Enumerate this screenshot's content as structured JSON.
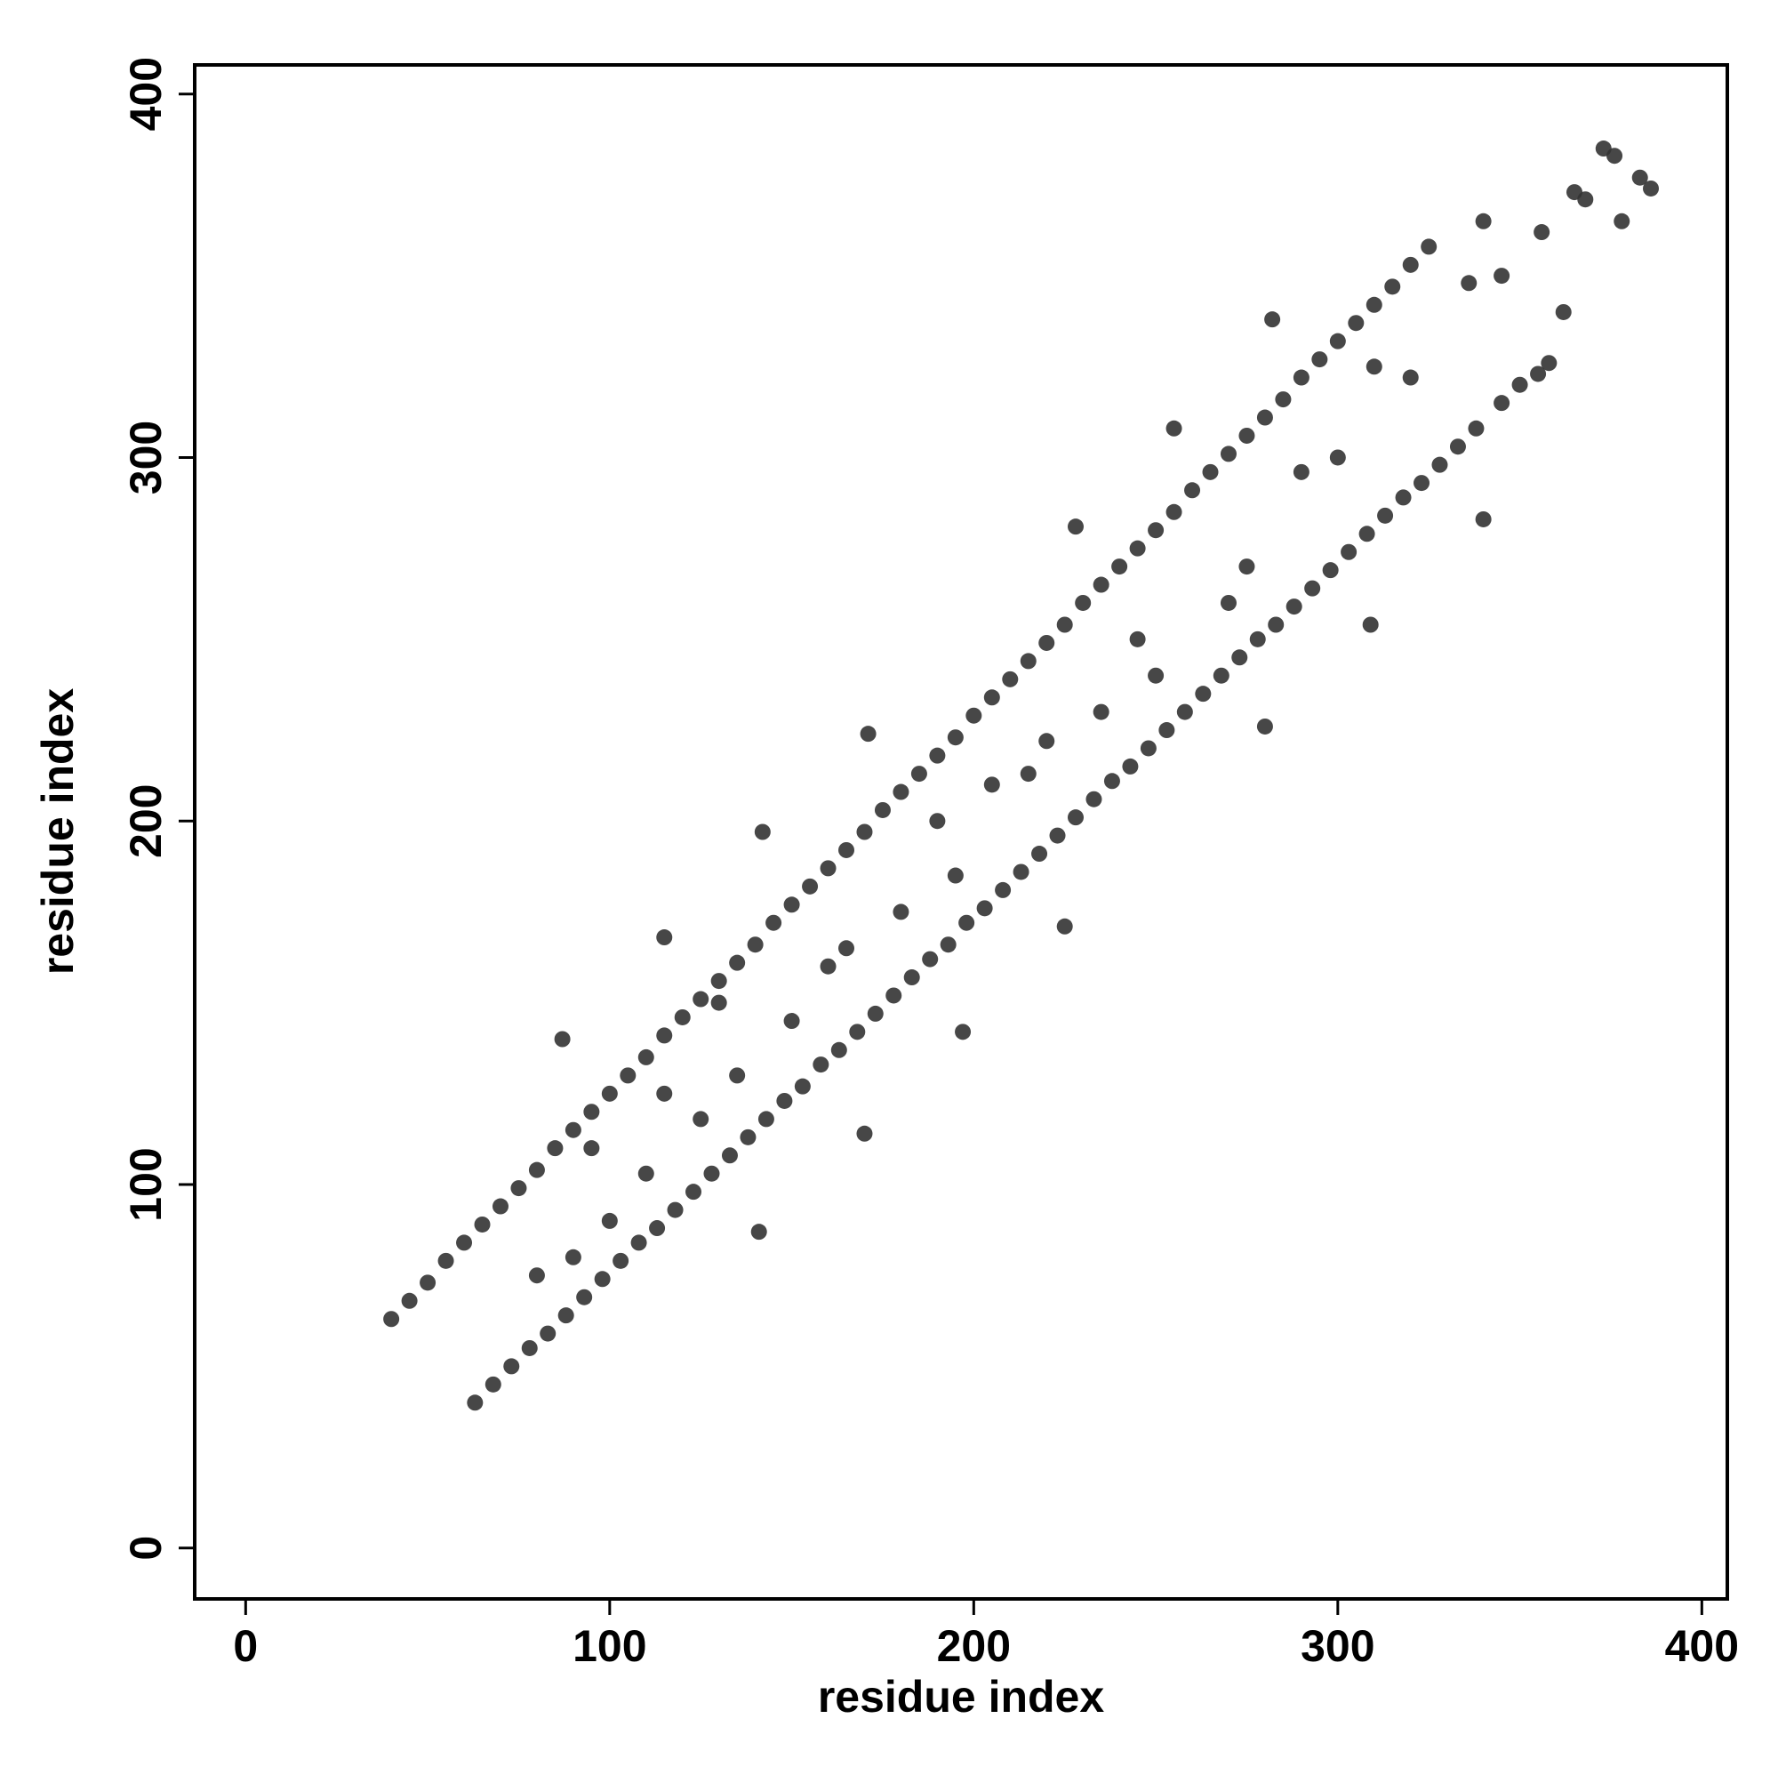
{
  "chart_data": {
    "type": "scatter",
    "xlabel": "residue index",
    "ylabel": "residue index",
    "color": "#333333",
    "xlim": [
      -14,
      407
    ],
    "ylim": [
      -14,
      408
    ],
    "xticks": [
      0,
      100,
      200,
      300,
      400
    ],
    "yticks": [
      0,
      100,
      200,
      300,
      400
    ],
    "x": [
      40,
      45,
      50,
      55,
      60,
      65,
      70,
      75,
      80,
      85,
      90,
      95,
      100,
      105,
      110,
      115,
      120,
      125,
      130,
      135,
      140,
      145,
      150,
      155,
      160,
      165,
      170,
      175,
      180,
      185,
      190,
      195,
      200,
      205,
      210,
      215,
      220,
      225,
      230,
      235,
      240,
      245,
      250,
      255,
      260,
      265,
      270,
      275,
      280,
      285,
      290,
      295,
      300,
      305,
      310,
      315,
      320,
      325,
      63,
      68,
      73,
      78,
      83,
      88,
      93,
      98,
      103,
      108,
      113,
      118,
      123,
      128,
      133,
      138,
      143,
      148,
      153,
      158,
      163,
      168,
      173,
      178,
      183,
      188,
      193,
      198,
      203,
      208,
      213,
      218,
      223,
      228,
      233,
      238,
      243,
      248,
      253,
      258,
      263,
      268,
      273,
      278,
      283,
      288,
      293,
      298,
      303,
      308,
      313,
      318,
      323,
      328,
      333,
      338,
      345,
      350,
      355,
      358,
      362,
      365,
      368,
      373,
      376,
      378,
      383,
      386,
      356,
      345,
      340,
      336,
      340,
      282,
      255,
      228,
      171,
      142,
      115,
      87,
      141,
      170,
      197,
      225,
      280,
      309,
      320,
      290,
      270,
      250,
      235,
      220,
      205,
      190,
      180,
      165,
      150,
      135,
      125,
      110,
      100,
      90,
      80,
      130,
      160,
      195,
      215,
      245,
      275,
      300,
      310,
      95,
      115
    ],
    "y": [
      63,
      68,
      73,
      79,
      84,
      89,
      94,
      99,
      104,
      110,
      115,
      120,
      125,
      130,
      135,
      141,
      146,
      151,
      156,
      161,
      166,
      172,
      177,
      182,
      187,
      192,
      197,
      203,
      208,
      213,
      218,
      223,
      229,
      234,
      239,
      244,
      249,
      254,
      260,
      265,
      270,
      275,
      280,
      285,
      291,
      296,
      301,
      306,
      311,
      316,
      322,
      327,
      332,
      337,
      342,
      347,
      353,
      358,
      40,
      45,
      50,
      55,
      59,
      64,
      69,
      74,
      79,
      84,
      88,
      93,
      98,
      103,
      108,
      113,
      118,
      123,
      127,
      133,
      137,
      142,
      147,
      152,
      157,
      162,
      166,
      172,
      176,
      181,
      186,
      191,
      196,
      201,
      206,
      211,
      215,
      220,
      225,
      230,
      235,
      240,
      245,
      250,
      254,
      259,
      264,
      269,
      274,
      279,
      284,
      289,
      293,
      298,
      303,
      308,
      315,
      320,
      323,
      326,
      340,
      373,
      371,
      385,
      383,
      365,
      377,
      374,
      362,
      350,
      365,
      348,
      283,
      338,
      308,
      281,
      224,
      197,
      168,
      140,
      87,
      114,
      142,
      171,
      226,
      254,
      322,
      296,
      260,
      240,
      230,
      222,
      210,
      200,
      175,
      165,
      145,
      130,
      118,
      103,
      90,
      80,
      75,
      150,
      160,
      185,
      213,
      250,
      270,
      300,
      325,
      110,
      125
    ]
  }
}
